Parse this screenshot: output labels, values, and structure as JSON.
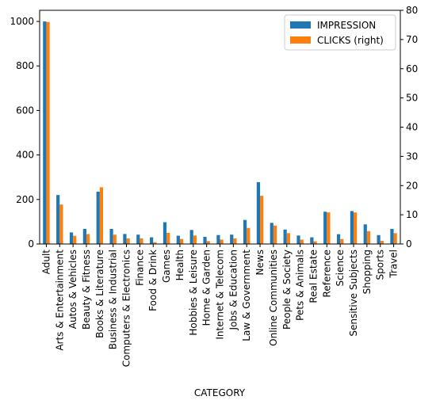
{
  "chart_data": {
    "type": "bar",
    "xlabel": "CATEGORY",
    "categories": [
      "Adult",
      "Arts & Entertainment",
      "Autos & Vehicles",
      "Beauty & Fitness",
      "Books & Literature",
      "Business & Industrial",
      "Computers & Electronics",
      "Finance",
      "Food & Drink",
      "Games",
      "Health",
      "Hobbies & Leisure",
      "Home & Garden",
      "Internet & Telecom",
      "Jobs & Education",
      "Law & Government",
      "News",
      "Online Communities",
      "People & Society",
      "Pets & Animals",
      "Real Estate",
      "Reference",
      "Science",
      "Sensitive Subjects",
      "Shopping",
      "Sports",
      "Travel"
    ],
    "series": [
      {
        "name": "IMPRESSION",
        "axis": "left",
        "color": "#1f77b4",
        "values": [
          1000,
          220,
          52,
          68,
          235,
          68,
          45,
          42,
          30,
          98,
          37,
          63,
          32,
          40,
          42,
          108,
          278,
          95,
          65,
          38,
          30,
          145,
          44,
          148,
          88,
          40,
          68
        ]
      },
      {
        "name": "CLICKS (right)",
        "axis": "right",
        "color": "#ff7f0e",
        "values": [
          76,
          13.5,
          2.8,
          3.4,
          19.4,
          3.2,
          1.9,
          1.9,
          0.6,
          3.8,
          1.7,
          2.9,
          1.0,
          1.5,
          1.9,
          5.5,
          16.5,
          6.3,
          3.7,
          1.5,
          0.9,
          10.8,
          1.7,
          10.8,
          4.4,
          1.1,
          3.7
        ]
      }
    ],
    "y_left": {
      "range": [
        0,
        1050
      ],
      "ticks": [
        0,
        200,
        400,
        600,
        800,
        1000
      ]
    },
    "y_right": {
      "range": [
        0,
        80
      ],
      "ticks": [
        0,
        10,
        20,
        30,
        40,
        50,
        60,
        70,
        80
      ]
    },
    "legend_placement": "top-right",
    "grid": false
  }
}
